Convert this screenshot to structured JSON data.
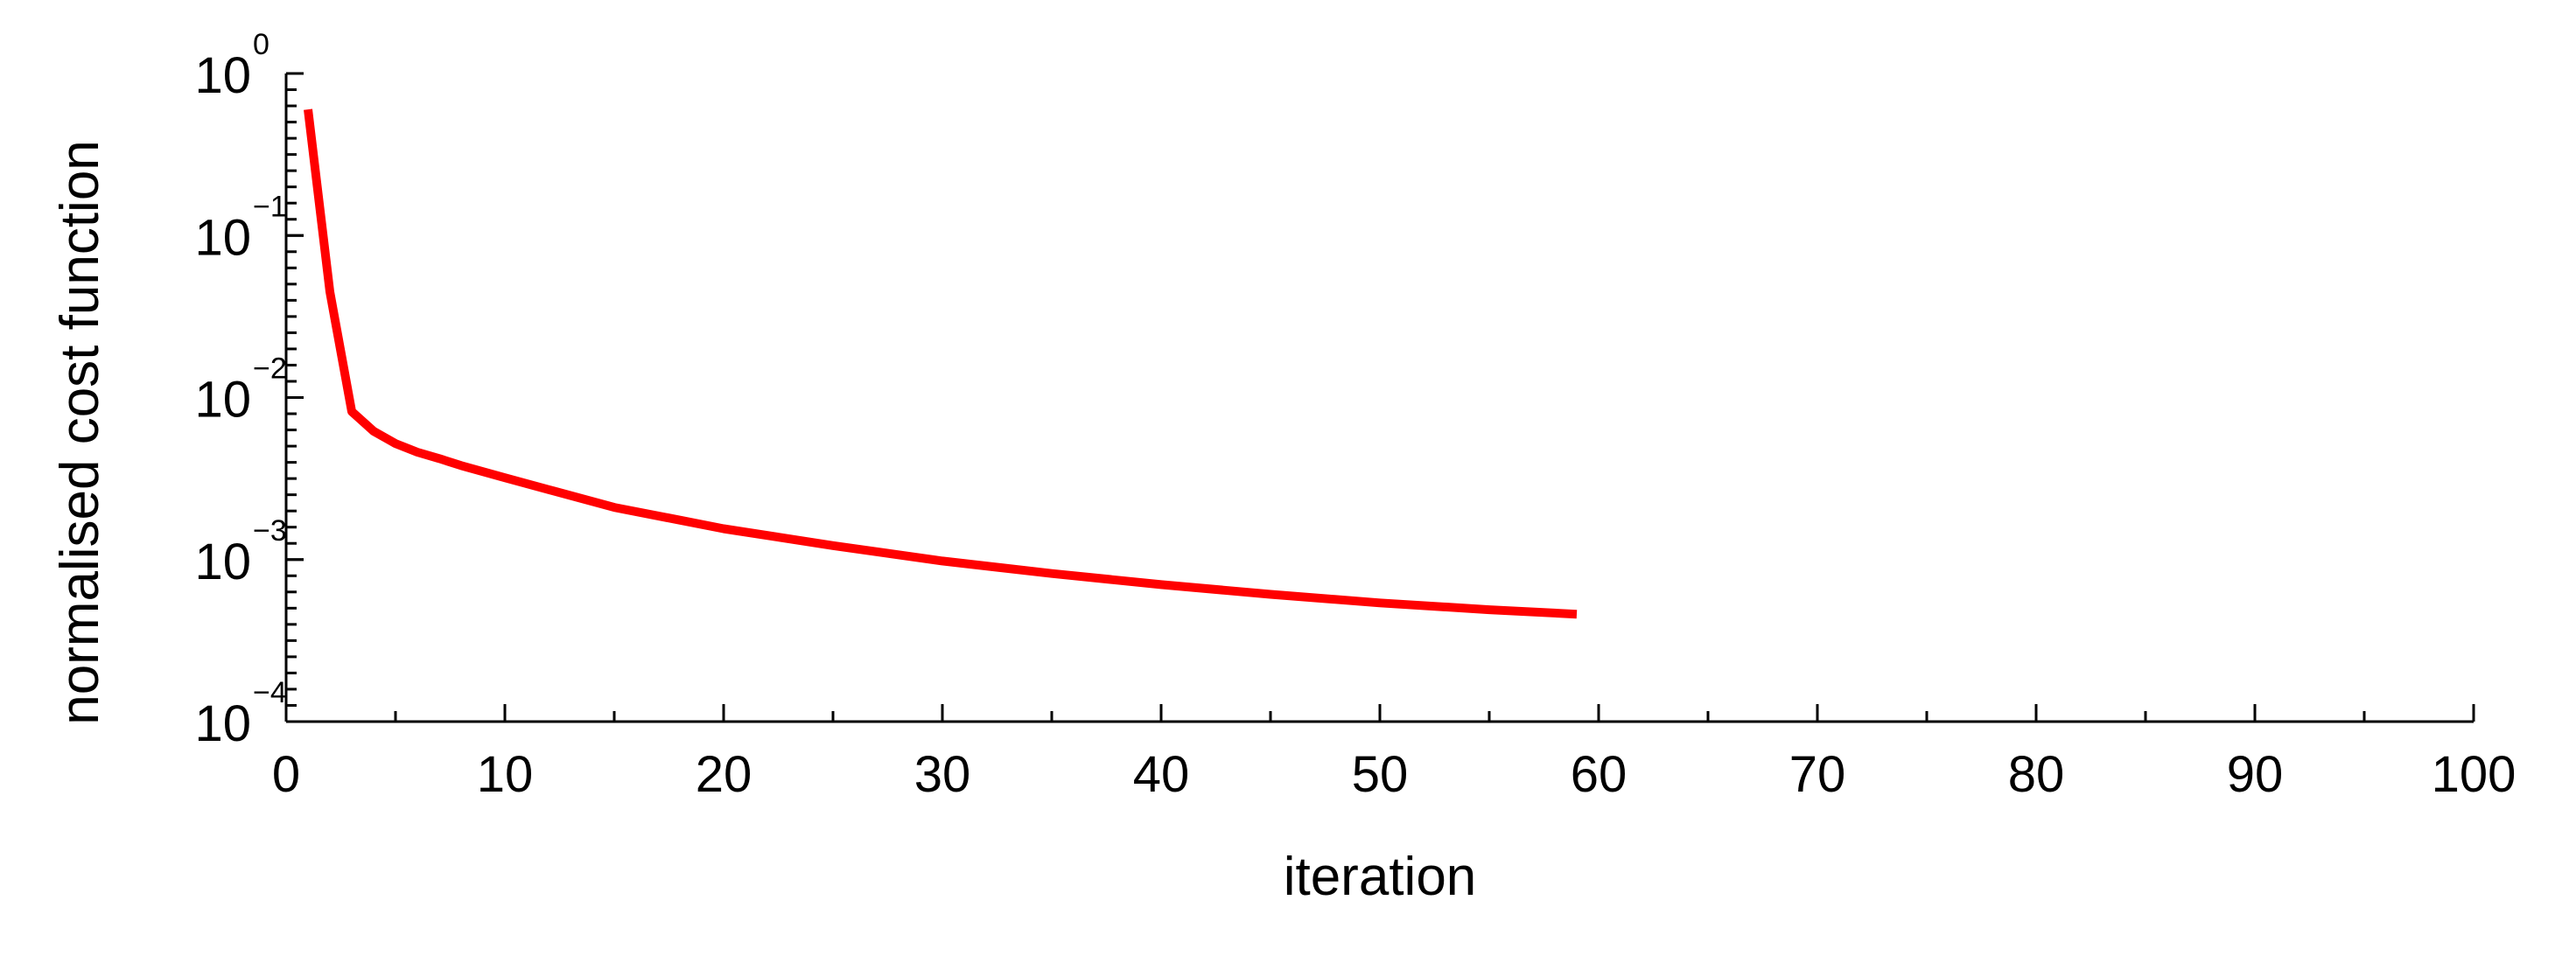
{
  "chart_data": {
    "type": "line",
    "title": "",
    "xlabel": "iteration",
    "ylabel": "normalised cost function",
    "xlim": [
      0,
      100
    ],
    "ylim": [
      0.0001,
      1
    ],
    "yscale": "log",
    "grid": false,
    "legend": "none",
    "xticks": [
      "0",
      "10",
      "20",
      "30",
      "40",
      "50",
      "60",
      "70",
      "80",
      "90",
      "100"
    ],
    "yticks": [
      {
        "base": "10",
        "exp": "0",
        "value": 1
      },
      {
        "base": "10",
        "exp": "−1",
        "value": 0.1
      },
      {
        "base": "10",
        "exp": "−2",
        "value": 0.01
      },
      {
        "base": "10",
        "exp": "−3",
        "value": 0.001
      },
      {
        "base": "10",
        "exp": "−4",
        "value": 0.0001
      }
    ],
    "series": [
      {
        "color": "#ff0000",
        "x": [
          1,
          2,
          3,
          4,
          5,
          6,
          7,
          8,
          10,
          12,
          15,
          18,
          20,
          25,
          30,
          35,
          40,
          45,
          50,
          55,
          59
        ],
        "y": [
          0.6,
          0.045,
          0.0082,
          0.0062,
          0.0052,
          0.0046,
          0.0042,
          0.0038,
          0.0032,
          0.0027,
          0.0021,
          0.00175,
          0.00155,
          0.00122,
          0.00098,
          0.00082,
          0.0007,
          0.00061,
          0.00054,
          0.00049,
          0.00046
        ]
      }
    ]
  }
}
